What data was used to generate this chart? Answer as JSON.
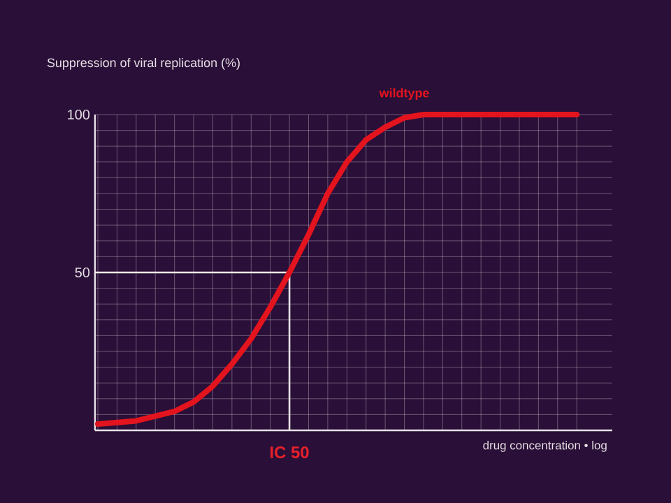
{
  "chart_data": {
    "type": "line",
    "xlabel": "drug concentration • log",
    "ylabel": "Suppression of viral replication (%)",
    "categories": [
      null,
      null,
      null,
      null,
      null,
      null,
      null,
      null,
      null,
      null,
      null,
      null,
      null,
      null,
      null,
      null,
      null,
      null,
      null,
      null,
      null,
      null,
      null,
      null,
      null,
      null
    ],
    "series": [
      {
        "name": "wildtype",
        "color": "#e3141e",
        "values": [
          2,
          2.5,
          3,
          4.5,
          6,
          9,
          14,
          21,
          29,
          39,
          50,
          62,
          75,
          85,
          92,
          96,
          99,
          100,
          100,
          100,
          100,
          100,
          100,
          100,
          100,
          100
        ]
      }
    ],
    "ylim": [
      0,
      100
    ],
    "yticks": [
      50,
      100
    ],
    "grid": true,
    "legend": false,
    "marker": "none",
    "line_style": "solid",
    "annotations": [
      "IC 50"
    ],
    "ref_lines": [
      {
        "axis": "y",
        "value": 50,
        "color": "#f2ece4"
      }
    ]
  }
}
